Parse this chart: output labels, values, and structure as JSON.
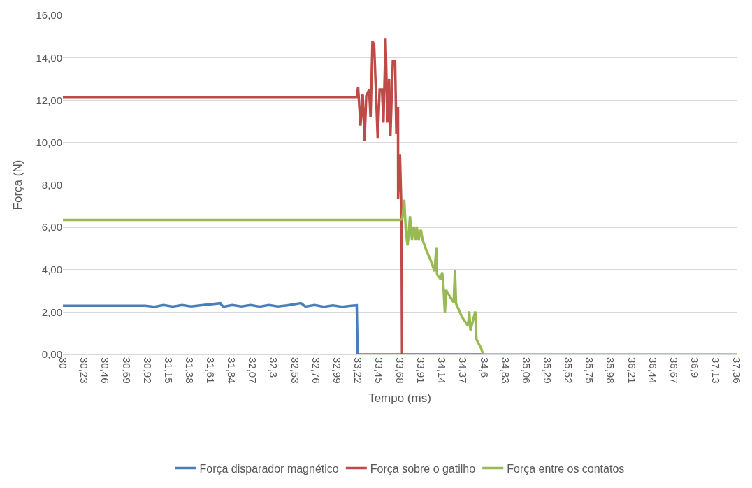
{
  "chart_data": {
    "type": "line",
    "xlabel": "Tempo (ms)",
    "ylabel": "Força (N)",
    "xlim": [
      30,
      37.36
    ],
    "xticks": [
      {
        "value": 30,
        "label": "30"
      },
      {
        "value": 30.23,
        "label": "30,23"
      },
      {
        "value": 30.46,
        "label": "30,46"
      },
      {
        "value": 30.69,
        "label": "30,69"
      },
      {
        "value": 30.92,
        "label": "30,92"
      },
      {
        "value": 31.15,
        "label": "31,15"
      },
      {
        "value": 31.38,
        "label": "31,38"
      },
      {
        "value": 31.61,
        "label": "31,61"
      },
      {
        "value": 31.84,
        "label": "31,84"
      },
      {
        "value": 32.07,
        "label": "32,07"
      },
      {
        "value": 32.3,
        "label": "32,3"
      },
      {
        "value": 32.53,
        "label": "32,53"
      },
      {
        "value": 32.76,
        "label": "32,76"
      },
      {
        "value": 32.99,
        "label": "32,99"
      },
      {
        "value": 33.22,
        "label": "33,22"
      },
      {
        "value": 33.45,
        "label": "33,45"
      },
      {
        "value": 33.68,
        "label": "33,68"
      },
      {
        "value": 33.91,
        "label": "33,91"
      },
      {
        "value": 34.14,
        "label": "34,14"
      },
      {
        "value": 34.37,
        "label": "34,37"
      },
      {
        "value": 34.6,
        "label": "34,6"
      },
      {
        "value": 34.83,
        "label": "34,83"
      },
      {
        "value": 35.06,
        "label": "35,06"
      },
      {
        "value": 35.29,
        "label": "35,29"
      },
      {
        "value": 35.52,
        "label": "35,52"
      },
      {
        "value": 35.75,
        "label": "35,75"
      },
      {
        "value": 35.98,
        "label": "35,98"
      },
      {
        "value": 36.21,
        "label": "36,21"
      },
      {
        "value": 36.44,
        "label": "36,44"
      },
      {
        "value": 36.67,
        "label": "36,67"
      },
      {
        "value": 36.9,
        "label": "36,9"
      },
      {
        "value": 37.13,
        "label": "37,13"
      },
      {
        "value": 37.36,
        "label": "37,36"
      }
    ],
    "ylim": [
      0,
      16
    ],
    "yticks": [
      {
        "value": 0,
        "label": "0,00"
      },
      {
        "value": 2,
        "label": "2,00"
      },
      {
        "value": 4,
        "label": "4,00"
      },
      {
        "value": 6,
        "label": "6,00"
      },
      {
        "value": 8,
        "label": "8,00"
      },
      {
        "value": 10,
        "label": "10,00"
      },
      {
        "value": 12,
        "label": "12,00"
      },
      {
        "value": 14,
        "label": "14,00"
      },
      {
        "value": 16,
        "label": "16,00"
      }
    ],
    "grid": "y",
    "legend": "bottom",
    "marker": "none",
    "line_style": "solid",
    "series": [
      {
        "name": "Força disparador magnético",
        "color": "#4a7ebb",
        "x": [
          30,
          30.9,
          31.0,
          31.1,
          31.2,
          31.3,
          31.4,
          31.5,
          31.72,
          31.75,
          31.85,
          31.95,
          32.05,
          32.15,
          32.25,
          32.35,
          32.45,
          32.6,
          32.65,
          32.75,
          32.85,
          32.95,
          33.05,
          33.15,
          33.21,
          33.22,
          33.7
        ],
        "values": [
          2.3,
          2.3,
          2.25,
          2.33,
          2.26,
          2.33,
          2.27,
          2.32,
          2.42,
          2.25,
          2.33,
          2.27,
          2.33,
          2.26,
          2.33,
          2.27,
          2.32,
          2.42,
          2.26,
          2.33,
          2.25,
          2.32,
          2.25,
          2.3,
          2.32,
          0,
          0
        ]
      },
      {
        "name": "Força sobre o gatilho",
        "color": "#be4b48",
        "x": [
          30,
          33.21,
          33.225,
          33.251,
          33.275,
          33.296,
          33.314,
          33.345,
          33.361,
          33.382,
          33.4,
          33.439,
          33.46,
          33.486,
          33.502,
          33.525,
          33.546,
          33.564,
          33.578,
          33.604,
          33.629,
          33.643,
          33.661,
          33.662,
          33.682,
          33.695,
          33.7,
          33.705,
          34.583
        ],
        "values": [
          12.15,
          12.15,
          12.62,
          10.8,
          12.3,
          10.1,
          12.2,
          12.5,
          11.2,
          14.78,
          14.62,
          10.19,
          12.5,
          12.5,
          10.94,
          14.9,
          10.94,
          13.0,
          10.32,
          13.83,
          13.83,
          10.4,
          11.68,
          7.34,
          9.46,
          7.34,
          5.66,
          0,
          0
        ]
      },
      {
        "name": "Força entre os contatos",
        "color": "#98b954",
        "x": [
          30,
          33.682,
          33.708,
          33.729,
          33.747,
          33.766,
          33.792,
          33.813,
          33.833,
          33.852,
          33.865,
          33.886,
          33.911,
          33.93,
          33.969,
          34.021,
          34.06,
          34.079,
          34.087,
          34.126,
          34.144,
          34.157,
          34.173,
          34.186,
          34.23,
          34.269,
          34.283,
          34.295,
          34.361,
          34.426,
          34.439,
          34.452,
          34.505,
          34.518,
          34.57,
          34.591,
          37.36
        ],
        "values": [
          6.35,
          6.35,
          6.4,
          7.3,
          5.77,
          5.14,
          6.52,
          5.41,
          6.04,
          5.41,
          6.04,
          5.41,
          5.88,
          5.41,
          4.93,
          4.4,
          3.92,
          5.03,
          3.77,
          3.55,
          3.87,
          3.24,
          1.97,
          3.04,
          2.72,
          2.45,
          3.99,
          2.4,
          1.77,
          1.34,
          2.03,
          1.14,
          2.03,
          0.71,
          0.28,
          0,
          0
        ]
      }
    ]
  }
}
